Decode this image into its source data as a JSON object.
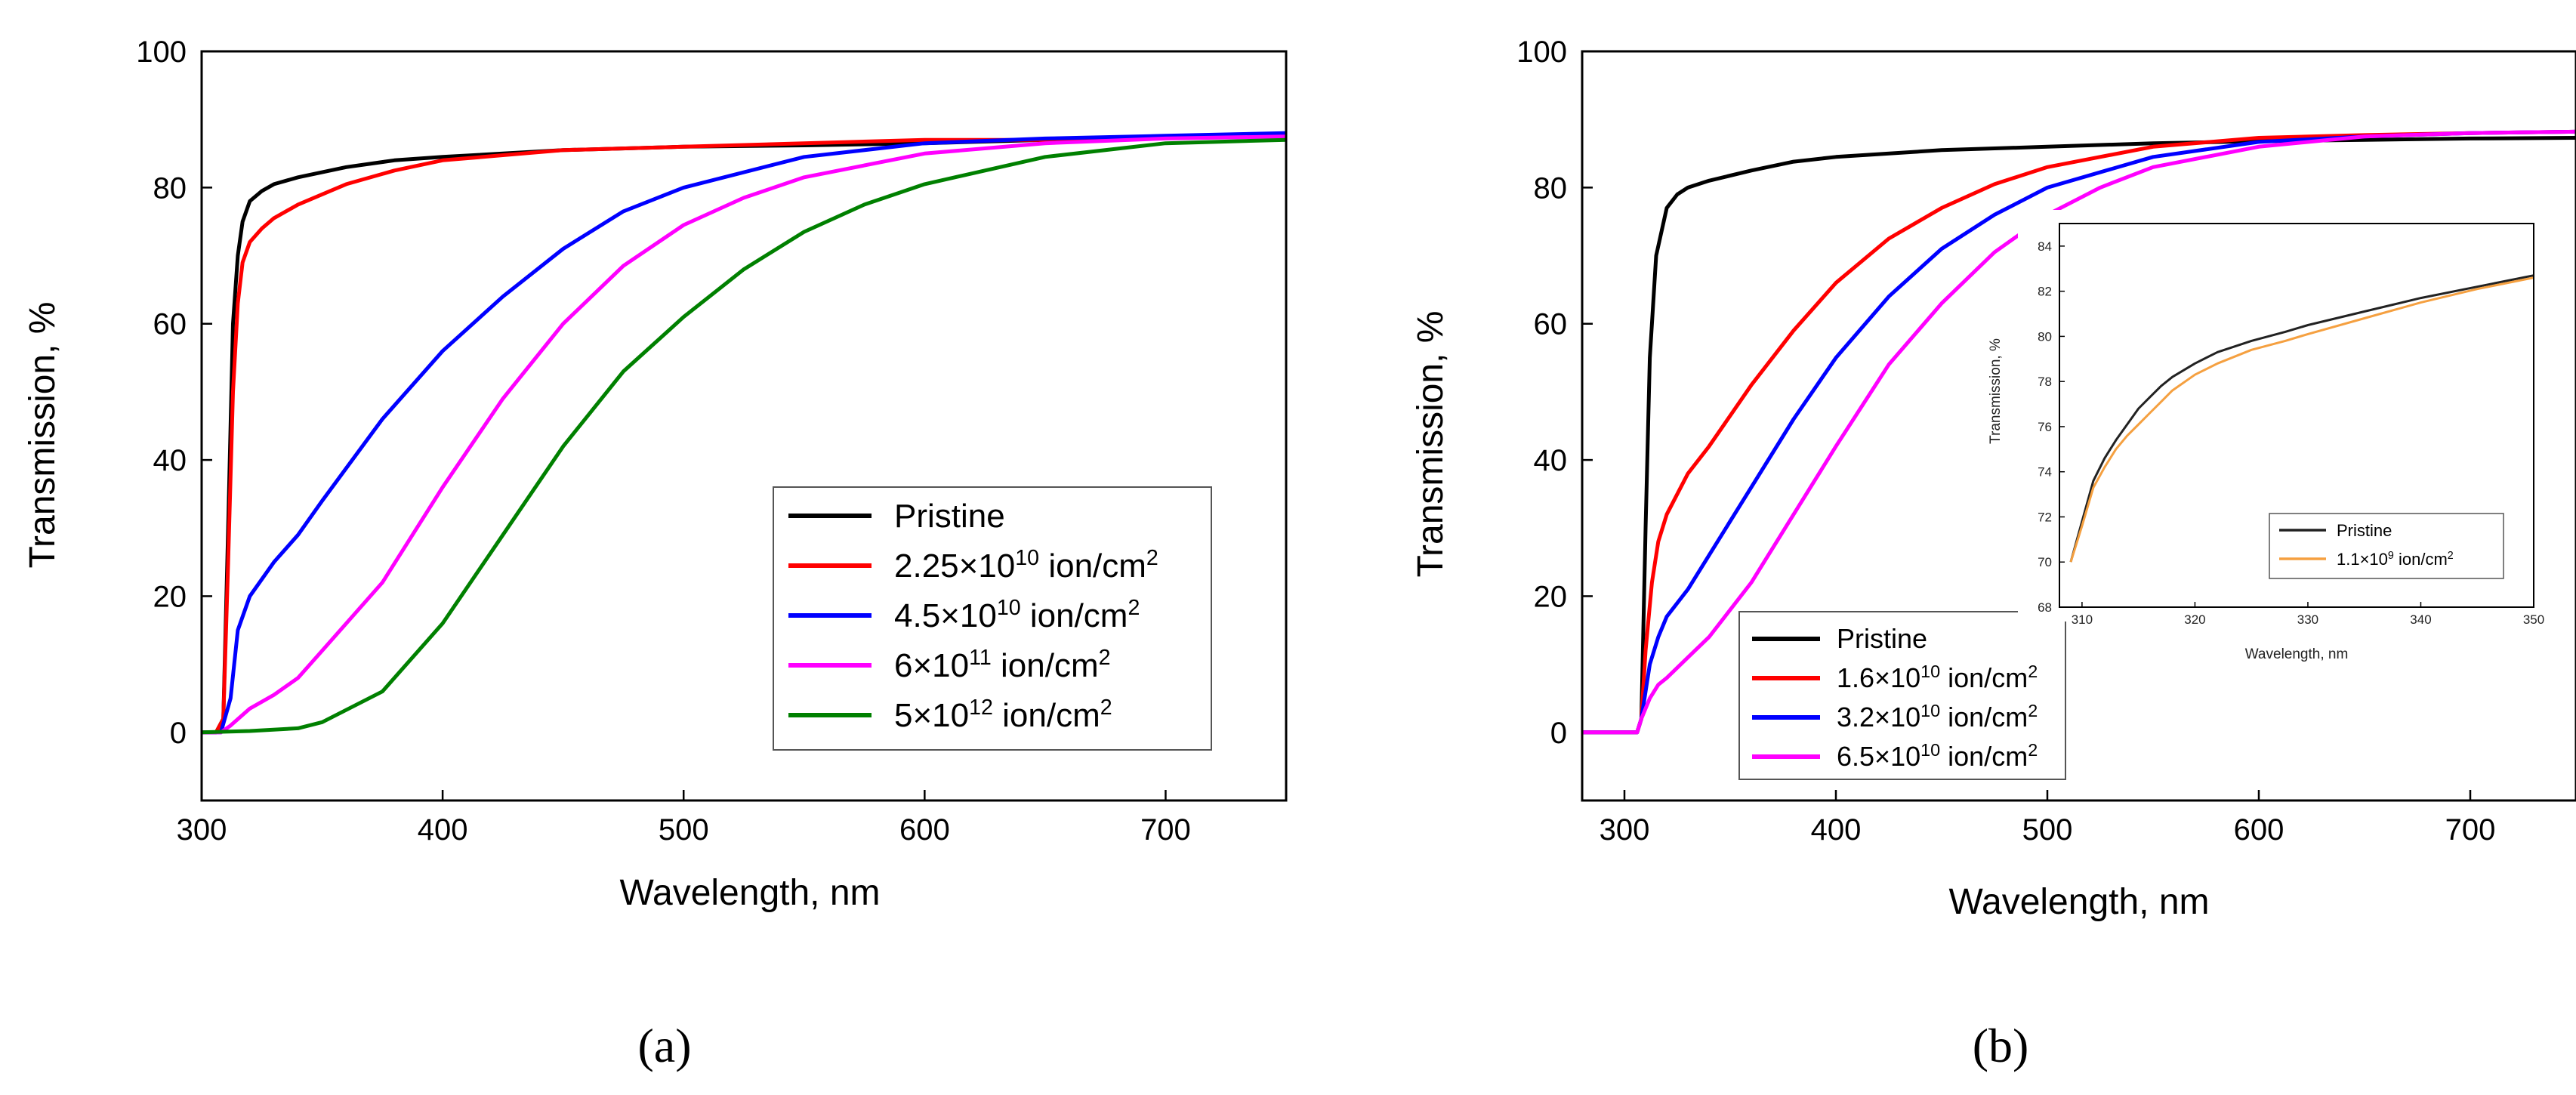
{
  "chart_data": [
    {
      "type": "line",
      "panel_label": "(a)",
      "xlabel": "Wavelength, nm",
      "ylabel": "Transmission, %",
      "xlim": [
        300,
        750
      ],
      "ylim": [
        -10,
        100
      ],
      "xticks": [
        "300",
        "400",
        "500",
        "600",
        "700"
      ],
      "yticks": [
        "0",
        "20",
        "40",
        "60",
        "80",
        "100"
      ],
      "legend_position": "center-right",
      "series": [
        {
          "name": "Pristine",
          "legend_base": "Pristine",
          "legend_exp": "",
          "legend_suffix": "",
          "color": "#000000",
          "x": [
            300,
            306,
            309,
            311,
            313,
            315,
            317,
            320,
            325,
            330,
            340,
            360,
            380,
            400,
            450,
            500,
            550,
            600,
            650,
            700,
            750
          ],
          "y": [
            0,
            0,
            2,
            30,
            60,
            70,
            75,
            78,
            79.5,
            80.5,
            81.5,
            83,
            84,
            84.5,
            85.5,
            86,
            86.2,
            86.5,
            87,
            87.3,
            87.5
          ]
        },
        {
          "name": "2.25×10^10 ion/cm^2",
          "legend_base": "2.25×10",
          "legend_exp": "10",
          "legend_suffix": " ion/cm",
          "color": "#ff0000",
          "x": [
            300,
            306,
            309,
            311,
            313,
            315,
            317,
            320,
            325,
            330,
            340,
            360,
            380,
            400,
            450,
            500,
            550,
            600,
            650,
            700,
            750
          ],
          "y": [
            0,
            0,
            2,
            25,
            50,
            63,
            69,
            72,
            74,
            75.5,
            77.5,
            80.5,
            82.5,
            84,
            85.5,
            86,
            86.5,
            87,
            87,
            87.3,
            87.5
          ]
        },
        {
          "name": "4.5×10^10 ion/cm^2",
          "legend_base": "4.5×10",
          "legend_exp": "10",
          "legend_suffix": " ion/cm",
          "color": "#0000ff",
          "x": [
            300,
            308,
            312,
            315,
            320,
            330,
            340,
            350,
            375,
            400,
            425,
            450,
            475,
            500,
            550,
            600,
            650,
            700,
            750
          ],
          "y": [
            0,
            0,
            5,
            15,
            20,
            25,
            29,
            34,
            46,
            56,
            64,
            71,
            76.5,
            80,
            84.5,
            86.5,
            87.2,
            87.6,
            88
          ]
        },
        {
          "name": "6×10^11 ion/cm^2",
          "legend_base": "6×10",
          "legend_exp": "11",
          "legend_suffix": " ion/cm",
          "color": "#ff00ff",
          "x": [
            300,
            308,
            312,
            320,
            330,
            340,
            350,
            375,
            400,
            425,
            450,
            475,
            500,
            525,
            550,
            600,
            650,
            700,
            750
          ],
          "y": [
            0,
            0,
            1,
            3.5,
            5.5,
            8,
            12,
            22,
            36,
            49,
            60,
            68.5,
            74.5,
            78.5,
            81.5,
            85,
            86.5,
            87.2,
            87.5
          ]
        },
        {
          "name": "5×10^12 ion/cm^2",
          "legend_base": "5×10",
          "legend_exp": "12",
          "legend_suffix": " ion/cm",
          "color": "#008000",
          "x": [
            300,
            320,
            340,
            350,
            375,
            400,
            425,
            450,
            475,
            500,
            525,
            550,
            575,
            600,
            650,
            700,
            750
          ],
          "y": [
            0,
            0.2,
            0.6,
            1.5,
            6,
            16,
            29,
            42,
            53,
            61,
            68,
            73.5,
            77.5,
            80.5,
            84.5,
            86.5,
            87
          ]
        }
      ]
    },
    {
      "type": "line",
      "panel_label": "(b)",
      "xlabel": "Wavelength, nm",
      "ylabel": "Transmission, %",
      "xlim": [
        280,
        750
      ],
      "ylim": [
        -10,
        100
      ],
      "xticks": [
        "300",
        "400",
        "500",
        "600",
        "700"
      ],
      "yticks": [
        "0",
        "20",
        "40",
        "60",
        "80",
        "100"
      ],
      "legend_position": "bottom-left",
      "series": [
        {
          "name": "Pristine",
          "legend_base": "Pristine",
          "legend_exp": "",
          "legend_suffix": "",
          "color": "#000000",
          "x": [
            280,
            306,
            308,
            310,
            312,
            315,
            320,
            325,
            330,
            340,
            360,
            380,
            400,
            450,
            500,
            550,
            600,
            650,
            700,
            750
          ],
          "y": [
            0,
            0,
            2,
            30,
            55,
            70,
            77,
            79,
            80,
            81,
            82.5,
            83.8,
            84.5,
            85.5,
            86,
            86.5,
            86.8,
            87,
            87.2,
            87.3
          ]
        },
        {
          "name": "1.6×10^10 ion/cm^2",
          "legend_base": "1.6×10",
          "legend_exp": "10",
          "legend_suffix": " ion/cm",
          "color": "#ff0000",
          "x": [
            280,
            306,
            308,
            310,
            313,
            316,
            320,
            330,
            340,
            360,
            380,
            400,
            425,
            450,
            475,
            500,
            550,
            600,
            650,
            700,
            750
          ],
          "y": [
            0,
            0,
            2,
            12,
            22,
            28,
            32,
            38,
            42,
            51,
            59,
            66,
            72.5,
            77,
            80.5,
            83,
            86,
            87.3,
            87.7,
            88,
            88.2
          ]
        },
        {
          "name": "3.2×10^10 ion/cm^2",
          "legend_base": "3.2×10",
          "legend_exp": "10",
          "legend_suffix": " ion/cm",
          "color": "#0000ff",
          "x": [
            280,
            306,
            308,
            312,
            316,
            320,
            330,
            340,
            360,
            380,
            400,
            425,
            450,
            475,
            500,
            550,
            600,
            650,
            700,
            750
          ],
          "y": [
            0,
            0,
            2,
            10,
            14,
            17,
            21,
            26,
            36,
            46,
            55,
            64,
            71,
            76,
            80,
            84.5,
            86.7,
            87.5,
            88,
            88.2
          ]
        },
        {
          "name": "6.5×10^10 ion/cm^2",
          "legend_base": "6.5×10",
          "legend_exp": "10",
          "legend_suffix": " ion/cm",
          "color": "#ff00ff",
          "x": [
            280,
            306,
            308,
            312,
            316,
            320,
            330,
            340,
            360,
            380,
            400,
            425,
            450,
            475,
            500,
            525,
            550,
            600,
            650,
            700,
            750
          ],
          "y": [
            0,
            0,
            2,
            5,
            7,
            8,
            11,
            14,
            22,
            32,
            42,
            54,
            63,
            70.5,
            76,
            80,
            83,
            86,
            87.5,
            88,
            88.2
          ]
        }
      ],
      "inset": {
        "xlabel": "Wavelength, nm",
        "ylabel": "Transmission, %",
        "xlim": [
          308,
          350
        ],
        "ylim": [
          68,
          85
        ],
        "xticks": [
          "310",
          "320",
          "330",
          "340",
          "350"
        ],
        "yticks": [
          "68",
          "70",
          "72",
          "74",
          "76",
          "78",
          "80",
          "82",
          "84"
        ],
        "series": [
          {
            "name": "Pristine",
            "legend_base": "Pristine",
            "legend_exp": "",
            "legend_suffix": "",
            "color": "#222222",
            "x": [
              309,
              310,
              311,
              312,
              313,
              314,
              315,
              316,
              317,
              318,
              320,
              322,
              325,
              328,
              330,
              335,
              340,
              345,
              350
            ],
            "y": [
              70,
              71.8,
              73.6,
              74.6,
              75.4,
              76.1,
              76.8,
              77.3,
              77.8,
              78.2,
              78.8,
              79.3,
              79.8,
              80.2,
              80.5,
              81.1,
              81.7,
              82.2,
              82.7
            ]
          },
          {
            "name": "1.1×10^9 ion/cm^2",
            "legend_base": "1.1×10",
            "legend_exp": "9",
            "legend_suffix": " ion/cm",
            "color": "#f5a040",
            "x": [
              309,
              310,
              311,
              312,
              313,
              314,
              315,
              316,
              317,
              318,
              320,
              322,
              325,
              328,
              330,
              335,
              340,
              345,
              350
            ],
            "y": [
              70,
              71.6,
              73.3,
              74.2,
              75,
              75.6,
              76.1,
              76.6,
              77.1,
              77.6,
              78.3,
              78.8,
              79.4,
              79.8,
              80.1,
              80.8,
              81.5,
              82.1,
              82.6
            ]
          }
        ]
      }
    }
  ]
}
